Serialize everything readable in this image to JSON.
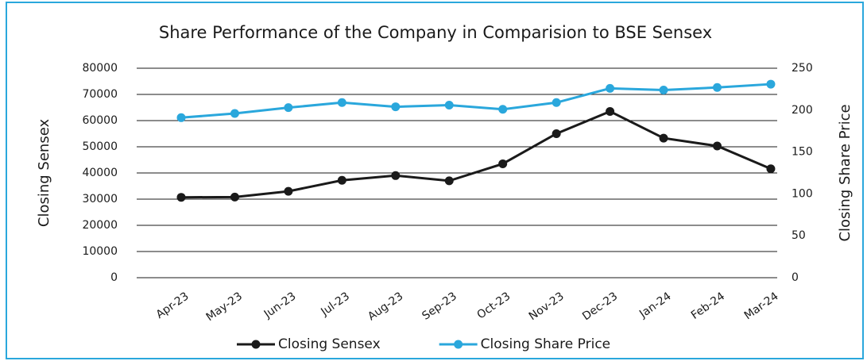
{
  "chart_data": {
    "type": "line",
    "title": "Share Performance of the Company in Comparision to BSE Sensex",
    "y_label": "Closing Sensex",
    "y2_label": "Closing Share Price",
    "categories": [
      "Apr-23",
      "May-23",
      "Jun-23",
      "Jul-23",
      "Aug-23",
      "Sep-23",
      "Oct-23",
      "Nov-23",
      "Dec-23",
      "Jan-24",
      "Feb-24",
      "Mar-24"
    ],
    "series": [
      {
        "name": "Closing Sensex",
        "color": "#1a1a1a",
        "values": [
          30700,
          30800,
          33000,
          37200,
          39000,
          37000,
          43500,
          55000,
          63500,
          53300,
          50300,
          41600
        ]
      },
      {
        "name": "Closing Share Price",
        "color": "#2aa7dc",
        "axis": "y2",
        "values": [
          191,
          196,
          203,
          209,
          204,
          206,
          201,
          209,
          226,
          224,
          227,
          231
        ]
      }
    ],
    "ylim": [
      0,
      80000
    ],
    "yticks": [
      0,
      10000,
      20000,
      30000,
      40000,
      50000,
      60000,
      70000,
      80000
    ],
    "y2lim": [
      0,
      250
    ],
    "y2ticks": [
      0,
      50,
      100,
      150,
      200,
      250
    ],
    "grid": true,
    "legend": "bottom"
  }
}
